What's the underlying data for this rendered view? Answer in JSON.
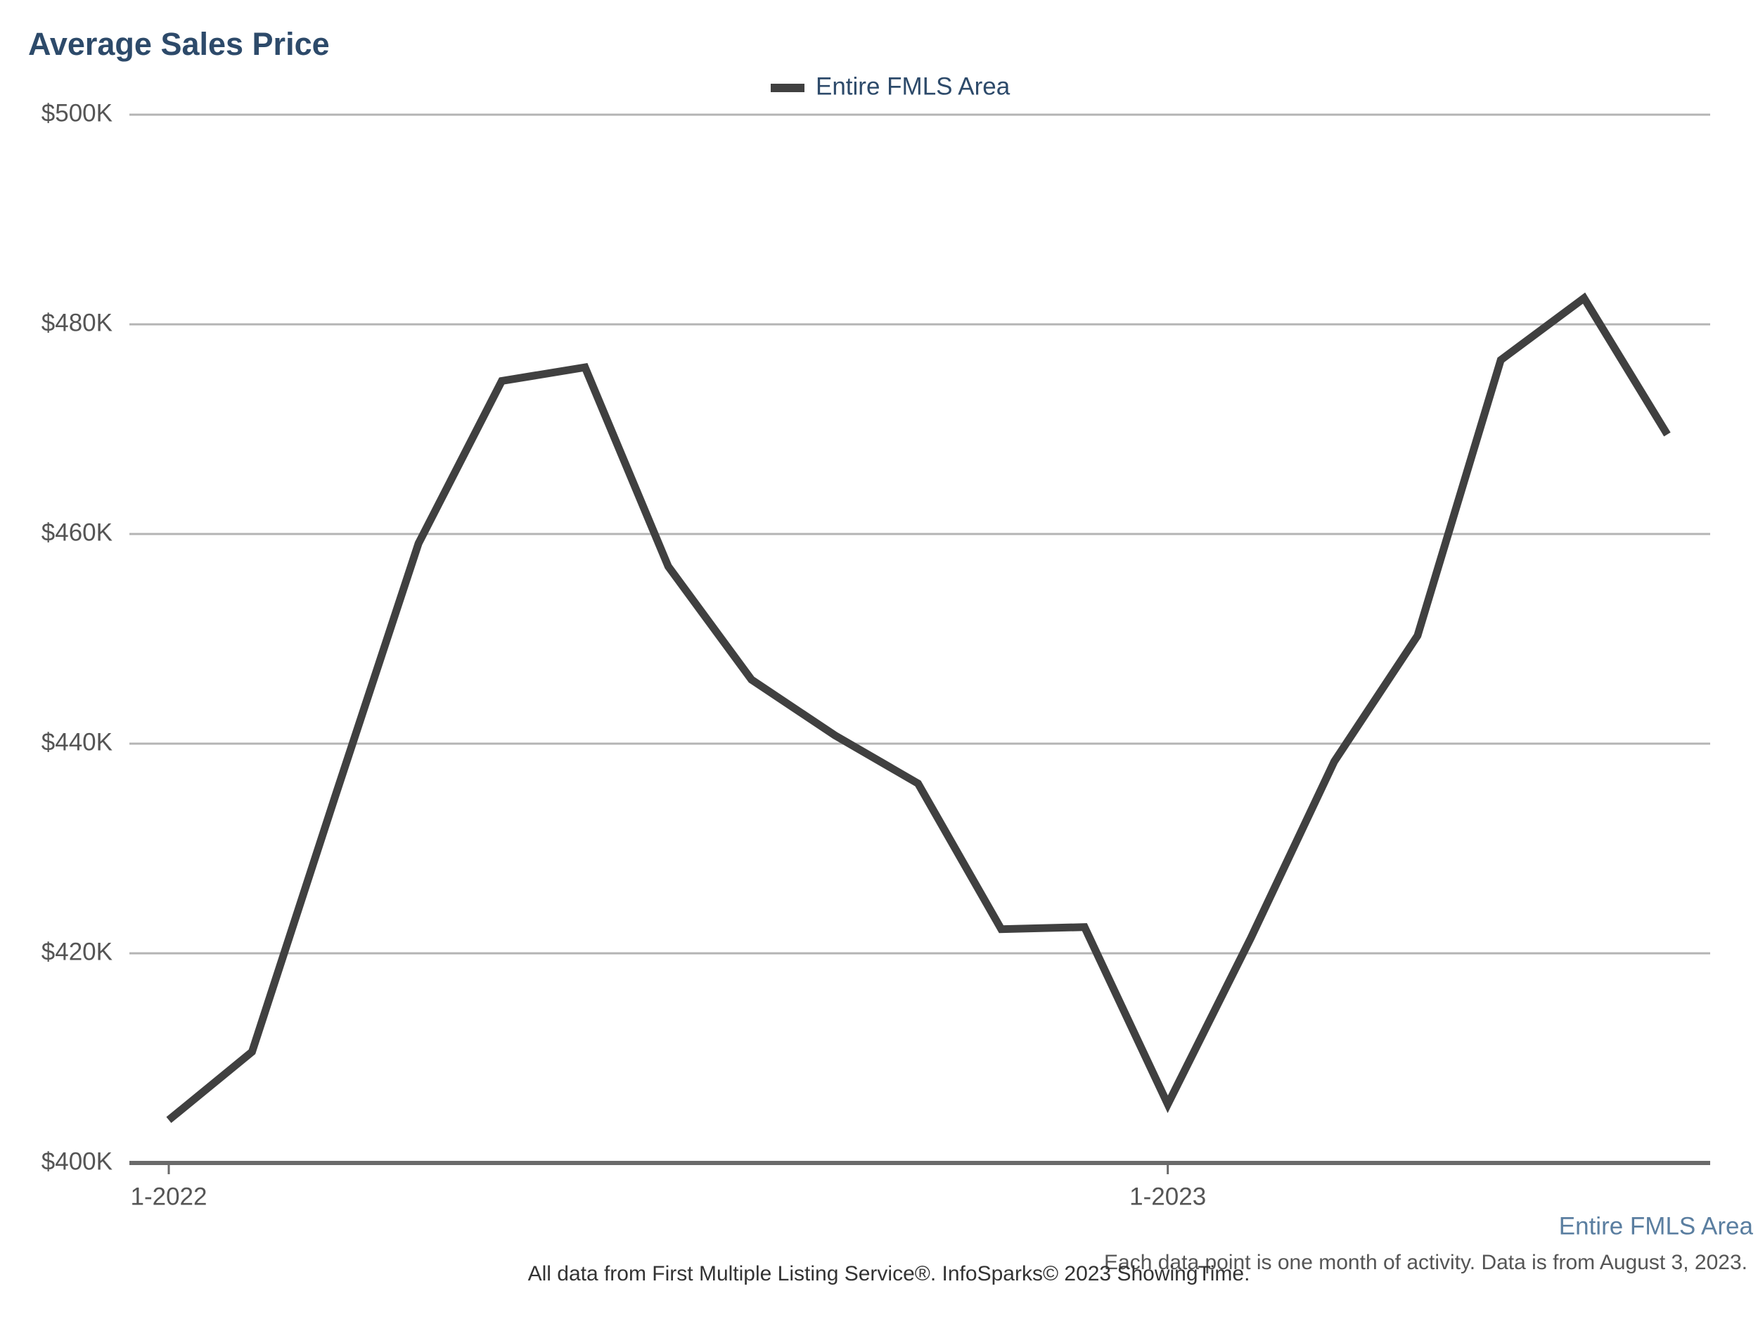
{
  "chart_data": {
    "type": "line",
    "title": "Average Sales Price",
    "categories": [
      "1-2022",
      null,
      null,
      null,
      null,
      null,
      null,
      null,
      null,
      null,
      null,
      null,
      "1-2023",
      null,
      null,
      null,
      null,
      null,
      null
    ],
    "series": [
      {
        "name": "Entire FMLS Area",
        "color": "#404040",
        "values": [
          404100,
          410600,
          435000,
          459100,
          474600,
          475900,
          456900,
          446100,
          440800,
          436200,
          422300,
          422500,
          405600,
          421500,
          438300,
          450300,
          476600,
          482500,
          469500
        ]
      }
    ],
    "ylim": [
      400000,
      500000
    ],
    "yticks": [
      {
        "value": 400000,
        "label": "$400K"
      },
      {
        "value": 420000,
        "label": "$420K"
      },
      {
        "value": 440000,
        "label": "$440K"
      },
      {
        "value": 460000,
        "label": "$460K"
      },
      {
        "value": 480000,
        "label": "$480K"
      },
      {
        "value": 500000,
        "label": "$500K"
      }
    ],
    "grid": true,
    "legend": "top",
    "notes": [
      "Each data point is one month of activity. Data is from August 3, 2023.",
      "All data from First Multiple Listing Service®. InfoSparks© 2023 ShowingTime."
    ]
  }
}
